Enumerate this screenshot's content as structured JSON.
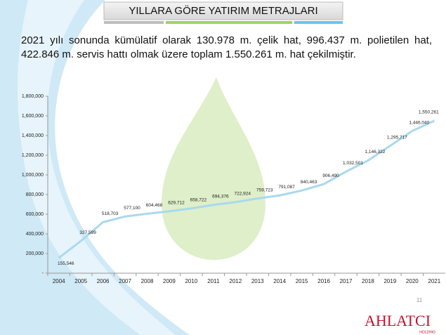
{
  "chart_data": {
    "type": "line",
    "title": "YILLARA GÖRE YATIRIM METRAJLARI",
    "subtitle": "2021 yılı sonunda kümülatif olarak 130.978 m. çelik hat, 996.437 m. polietilen hat, 422.846 m. servis hattı olmak üzere toplam 1.550.261 m. hat çekilmiştir.",
    "categories": [
      "2004",
      "2005",
      "2006",
      "2007",
      "2008",
      "2009",
      "2010",
      "2011",
      "2012",
      "2013",
      "2014",
      "2015",
      "2016",
      "2017",
      "2018",
      "2019",
      "2020",
      "2021"
    ],
    "values": [
      155546,
      327599,
      518703,
      577100,
      604468,
      629712,
      658722,
      694376,
      722924,
      759723,
      791087,
      840463,
      906490,
      1032501,
      1146322,
      1295717,
      1446040,
      1550261
    ],
    "value_labels": [
      "155,546",
      "327,599",
      "518,703",
      "577,100",
      "604,468",
      "629,712",
      "658,722",
      "694,376",
      "722,924",
      "759,723",
      "791,087",
      "840,463",
      "906,490",
      "1,032,501",
      "1,146,322",
      "1,295,717",
      "1,446,040",
      "1,550,261"
    ],
    "color": "#a9d9ef",
    "ylim": [
      0,
      1800000
    ],
    "yticks": [
      {
        "value": 0,
        "label": "-"
      },
      {
        "value": 200000,
        "label": "200,000"
      },
      {
        "value": 400000,
        "label": "400,000"
      },
      {
        "value": 600000,
        "label": "600,000"
      },
      {
        "value": 800000,
        "label": "800,000"
      },
      {
        "value": 1000000,
        "label": "1,000,000"
      },
      {
        "value": 1200000,
        "label": "1,200,000"
      },
      {
        "value": 1400000,
        "label": "1,400,000"
      },
      {
        "value": 1600000,
        "label": "1,600,000"
      },
      {
        "value": 1800000,
        "label": "1,800,000"
      }
    ],
    "grid": false
  },
  "page_number": "11",
  "logo": {
    "name": "AHLATCI",
    "sub": "HOLDING"
  }
}
